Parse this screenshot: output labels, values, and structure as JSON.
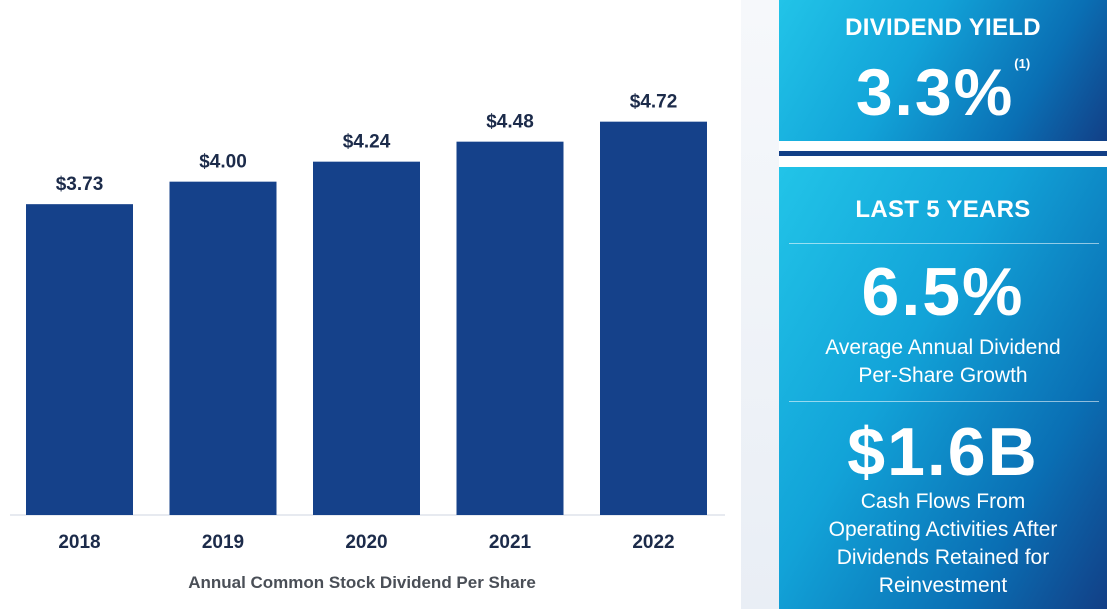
{
  "chart_data": {
    "type": "bar",
    "categories": [
      "2018",
      "2019",
      "2020",
      "2021",
      "2022"
    ],
    "values": [
      3.73,
      4.0,
      4.24,
      4.48,
      4.72
    ],
    "data_labels": [
      "$3.73",
      "$4.00",
      "$4.24",
      "$4.48",
      "$4.72"
    ],
    "xlabel": "Annual Common Stock Dividend Per Share",
    "ylabel": "",
    "ylim": [
      0,
      5.1
    ],
    "grid": false,
    "bar_color": "#15418a"
  },
  "panel": {
    "yield": {
      "heading": "DIVIDEND YIELD",
      "value": "3.3%",
      "footnote": "(1)"
    },
    "stats": {
      "heading": "LAST 5 YEARS",
      "growth_value": "6.5%",
      "growth_line1": "Average Annual Dividend",
      "growth_line2": "Per-Share Growth",
      "cash_value": "$1.6B",
      "cash_line1": "Cash Flows From",
      "cash_line2": "Operating Activities After",
      "cash_line3": "Dividends Retained for",
      "cash_line4": "Reinvestment"
    }
  },
  "colors": {
    "accent_navy": "#15418a",
    "panel_cyan": "#1fbde6",
    "panel_navy": "#123f86"
  }
}
